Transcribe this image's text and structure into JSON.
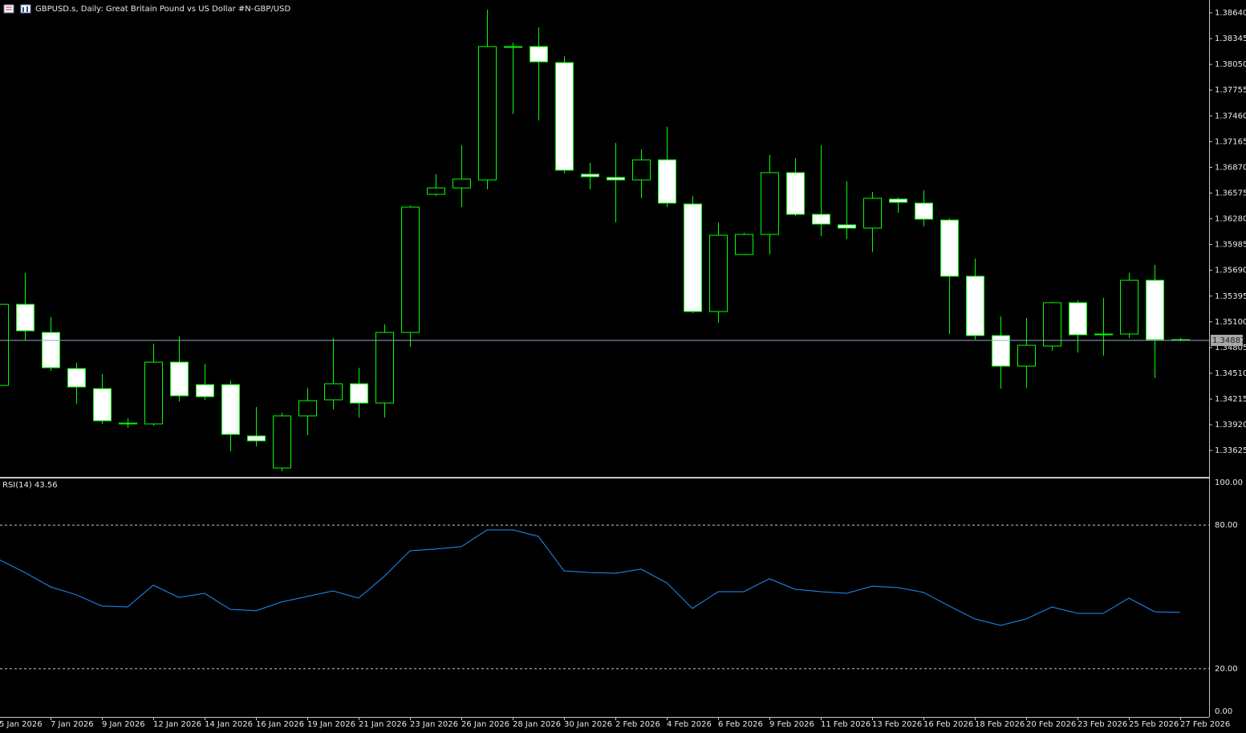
{
  "chart_data": [
    {
      "type": "candlestick",
      "title": "GBPUSD.s, Daily:  Great Britain Pound vs US Dollar #N-GBP/USD",
      "categories": [
        "5 Jan 2026",
        null,
        "7 Jan 2026",
        null,
        "9 Jan 2026",
        null,
        "12 Jan 2026",
        null,
        "14 Jan 2026",
        null,
        "16 Jan 2026",
        null,
        "19 Jan 2026",
        null,
        "21 Jan 2026",
        null,
        "23 Jan 2026",
        null,
        "26 Jan 2026",
        null,
        "28 Jan 2026",
        null,
        "30 Jan 2026",
        null,
        "2 Feb 2026",
        null,
        "4 Feb 2026",
        null,
        "6 Feb 2026",
        null,
        "9 Feb 2026",
        null,
        "11 Feb 2026",
        null,
        "13 Feb 2026",
        null,
        "16 Feb 2026",
        null,
        "18 Feb 2026",
        null,
        "20 Feb 2026",
        null,
        "23 Feb 2026",
        null,
        "25 Feb 2026",
        null,
        "27 Feb 2026"
      ],
      "open": [
        1.34371,
        1.353,
        1.34978,
        1.34564,
        1.34334,
        1.3393,
        1.3393,
        1.34638,
        1.3438,
        1.3438,
        1.33792,
        1.33424,
        1.34022,
        1.34206,
        1.3439,
        1.34169,
        1.34978,
        1.36561,
        1.36634,
        1.36726,
        1.38244,
        1.38254,
        1.3807,
        1.36791,
        1.36754,
        1.36726,
        1.36956,
        1.3645,
        1.35218,
        1.35871,
        1.36101,
        1.36809,
        1.36331,
        1.36211,
        1.36174,
        1.36506,
        1.3646,
        1.36266,
        1.35622,
        1.34942,
        1.34592,
        1.34822,
        1.35319,
        1.34951,
        1.3496,
        1.35576,
        1.34896
      ],
      "high": [
        1.35337,
        1.35659,
        1.35153,
        1.34629,
        1.345,
        1.33994,
        1.3485,
        1.34932,
        1.3462,
        1.34426,
        1.34123,
        1.34058,
        1.34344,
        1.34914,
        1.34574,
        1.3507,
        1.36432,
        1.36791,
        1.37122,
        1.38677,
        1.383,
        1.38474,
        1.38143,
        1.3692,
        1.3715,
        1.37076,
        1.37334,
        1.36542,
        1.36239,
        1.36119,
        1.37012,
        1.36975,
        1.37122,
        1.36708,
        1.36588,
        1.36524,
        1.36607,
        1.36285,
        1.35825,
        1.35162,
        1.35144,
        1.35328,
        1.35346,
        1.35374,
        1.35659,
        1.35751,
        1.34914
      ],
      "low": [
        1.34325,
        1.34886,
        1.34537,
        1.3416,
        1.3393,
        1.33884,
        1.33911,
        1.34187,
        1.34206,
        1.33617,
        1.33672,
        1.33387,
        1.33801,
        1.34095,
        1.34003,
        1.34003,
        1.34813,
        1.36542,
        1.36414,
        1.36616,
        1.37481,
        1.37407,
        1.368,
        1.36616,
        1.36239,
        1.36515,
        1.36414,
        1.35199,
        1.35089,
        1.35862,
        1.35871,
        1.36312,
        1.36082,
        1.36046,
        1.35898,
        1.36349,
        1.36193,
        1.3496,
        1.34896,
        1.34334,
        1.34344,
        1.34767,
        1.34748,
        1.34712,
        1.34914,
        1.34454,
        1.34878
      ],
      "close": [
        1.353,
        1.34997,
        1.34574,
        1.34353,
        1.33966,
        1.33939,
        1.34638,
        1.34252,
        1.34242,
        1.3381,
        1.33736,
        1.34022,
        1.34196,
        1.3439,
        1.34169,
        1.34978,
        1.36414,
        1.36634,
        1.36736,
        1.38254,
        1.38254,
        1.38079,
        1.36837,
        1.36763,
        1.36726,
        1.36956,
        1.3646,
        1.35218,
        1.36092,
        1.36101,
        1.36809,
        1.36331,
        1.3622,
        1.36174,
        1.36515,
        1.36469,
        1.36276,
        1.35622,
        1.34942,
        1.34592,
        1.34831,
        1.35319,
        1.34951,
        1.3496,
        1.35576,
        1.34896,
        1.34887
      ],
      "outline_color": "#00ff00",
      "bull_body_color": "#000000",
      "bear_body_color": "#ffffff",
      "price_line_color": "#8fa8c8",
      "ylim": [
        1.33332,
        1.38769
      ],
      "yticks": [
        {
          "value": 1.3864,
          "label": "1.38640"
        },
        1.38345,
        {
          "value": 1.3805,
          "label": "1.38050"
        },
        1.37755,
        {
          "value": 1.3746,
          "label": "1.37460"
        },
        1.37165,
        {
          "value": 1.3687,
          "label": "1.36870"
        },
        1.36575,
        {
          "value": 1.3628,
          "label": "1.36280"
        },
        1.35985,
        {
          "value": 1.3569,
          "label": "1.35690"
        },
        1.35395,
        {
          "value": 1.351,
          "label": "1.35100"
        },
        1.34805,
        {
          "value": 1.3451,
          "label": "1.34510"
        },
        1.34215,
        {
          "value": 1.3392,
          "label": "1.33920"
        },
        1.33625
      ]
    },
    {
      "type": "line",
      "series": [
        {
          "name": "RSI(14)",
          "color": "#1e90ff",
          "values": [
            65.6,
            60.2,
            54.2,
            50.9,
            46.2,
            45.8,
            54.9,
            49.8,
            51.5,
            44.8,
            44.2,
            47.9,
            50.2,
            52.5,
            49.5,
            58.6,
            69.3,
            70.0,
            71.0,
            78.0,
            78.0,
            75.3,
            60.9,
            60.2,
            59.9,
            61.6,
            55.9,
            45.2,
            52.2,
            52.2,
            57.6,
            53.2,
            52.2,
            51.5,
            54.5,
            53.9,
            51.9,
            46.2,
            40.8,
            38.1,
            40.8,
            45.8,
            43.1,
            43.1,
            49.5,
            43.8,
            43.56
          ]
        }
      ],
      "ylim": [
        0,
        100
      ],
      "yticks": [
        {
          "value": 100,
          "label": "100.00"
        },
        {
          "value": 80,
          "label": "80.00"
        },
        {
          "value": 20,
          "label": "20.00"
        },
        {
          "value": 0,
          "label": "0.00"
        }
      ]
    }
  ]
}
